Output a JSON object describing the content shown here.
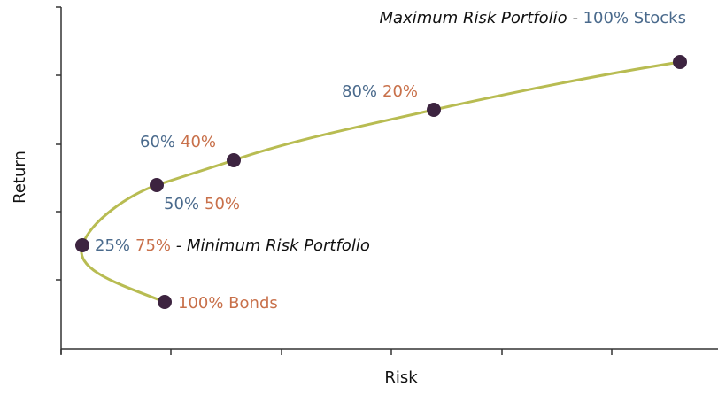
{
  "colors": {
    "stocks": "#4a6a8c",
    "bonds": "#c8704a",
    "text": "#111111",
    "curve": "#b8bc52",
    "point": "#3d2440",
    "axis": "#333333"
  },
  "chart_data": {
    "type": "line",
    "xlabel": "Risk",
    "ylabel": "Return",
    "grid": false,
    "legend": "none",
    "note": "efficient frontier; no numeric tick labels shown",
    "points": [
      {
        "name": "100% Bonds"
      },
      {
        "name": "25% 75% - Minimum Risk Portfolio"
      },
      {
        "name": "50% 50%"
      },
      {
        "name": "60% 40%"
      },
      {
        "name": "80% 20%"
      },
      {
        "name": "Maximum Risk Portfolio - 100% Stocks"
      }
    ]
  },
  "labels": {
    "max_risk_text": "Maximum Risk Portfolio - ",
    "max_risk_stocks": "100% Stocks",
    "p80_stocks": "80%",
    "p80_bonds": "20%",
    "p60_stocks": "60%",
    "p60_bonds": "40%",
    "p50_stocks": "50%",
    "p50_bonds": "50%",
    "p25_stocks": "25%",
    "p25_bonds": "75%",
    "p25_text": " - Minimum Risk Portfolio",
    "bonds100": "100% Bonds"
  }
}
